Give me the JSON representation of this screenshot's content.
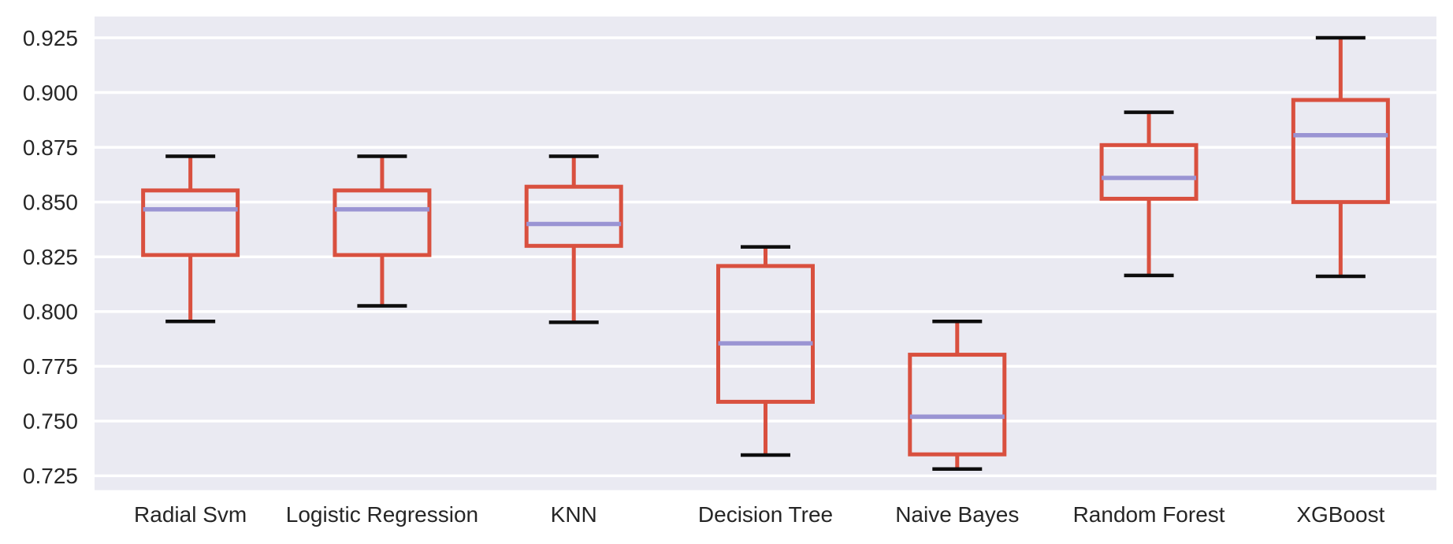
{
  "chart_data": {
    "type": "boxplot",
    "title": "",
    "xlabel": "",
    "ylabel": "",
    "categories": [
      "Radial Svm",
      "Logistic Regression",
      "KNN",
      "Decision Tree",
      "Naive Bayes",
      "Random Forest",
      "XGBoost"
    ],
    "series": [
      {
        "name": "Radial Svm",
        "whisker_low": 0.7955,
        "q1": 0.8258,
        "median": 0.8467,
        "q3": 0.8553,
        "whisker_high": 0.8709
      },
      {
        "name": "Logistic Regression",
        "whisker_low": 0.8026,
        "q1": 0.8258,
        "median": 0.8467,
        "q3": 0.8553,
        "whisker_high": 0.8709
      },
      {
        "name": "KNN",
        "whisker_low": 0.7951,
        "q1": 0.83,
        "median": 0.84,
        "q3": 0.857,
        "whisker_high": 0.8709
      },
      {
        "name": "Decision Tree",
        "whisker_low": 0.7345,
        "q1": 0.7588,
        "median": 0.7855,
        "q3": 0.8208,
        "whisker_high": 0.8295
      },
      {
        "name": "Naive Bayes",
        "whisker_low": 0.7281,
        "q1": 0.7348,
        "median": 0.752,
        "q3": 0.7803,
        "whisker_high": 0.7955
      },
      {
        "name": "Random Forest",
        "whisker_low": 0.8165,
        "q1": 0.8515,
        "median": 0.861,
        "q3": 0.876,
        "whisker_high": 0.891
      },
      {
        "name": "XGBoost",
        "whisker_low": 0.8161,
        "q1": 0.85,
        "median": 0.8805,
        "q3": 0.8966,
        "whisker_high": 0.925
      }
    ],
    "yticks": [
      0.725,
      0.75,
      0.775,
      0.8,
      0.825,
      0.85,
      0.875,
      0.9,
      0.925
    ],
    "ytick_labels": [
      "0.725",
      "0.750",
      "0.775",
      "0.800",
      "0.825",
      "0.850",
      "0.875",
      "0.900",
      "0.925"
    ],
    "ylim": [
      0.7185,
      0.9347
    ],
    "grid": true,
    "legend": "none",
    "colors": {
      "figure_background": "#ffffff",
      "plot_background": "#eaeaf2",
      "grid_line": "#ffffff",
      "box_edge": "#d9503f",
      "whisker": "#d9503f",
      "median": "#9a94d3",
      "cap": "#0d0d0d",
      "tick_label": "#262626"
    }
  }
}
